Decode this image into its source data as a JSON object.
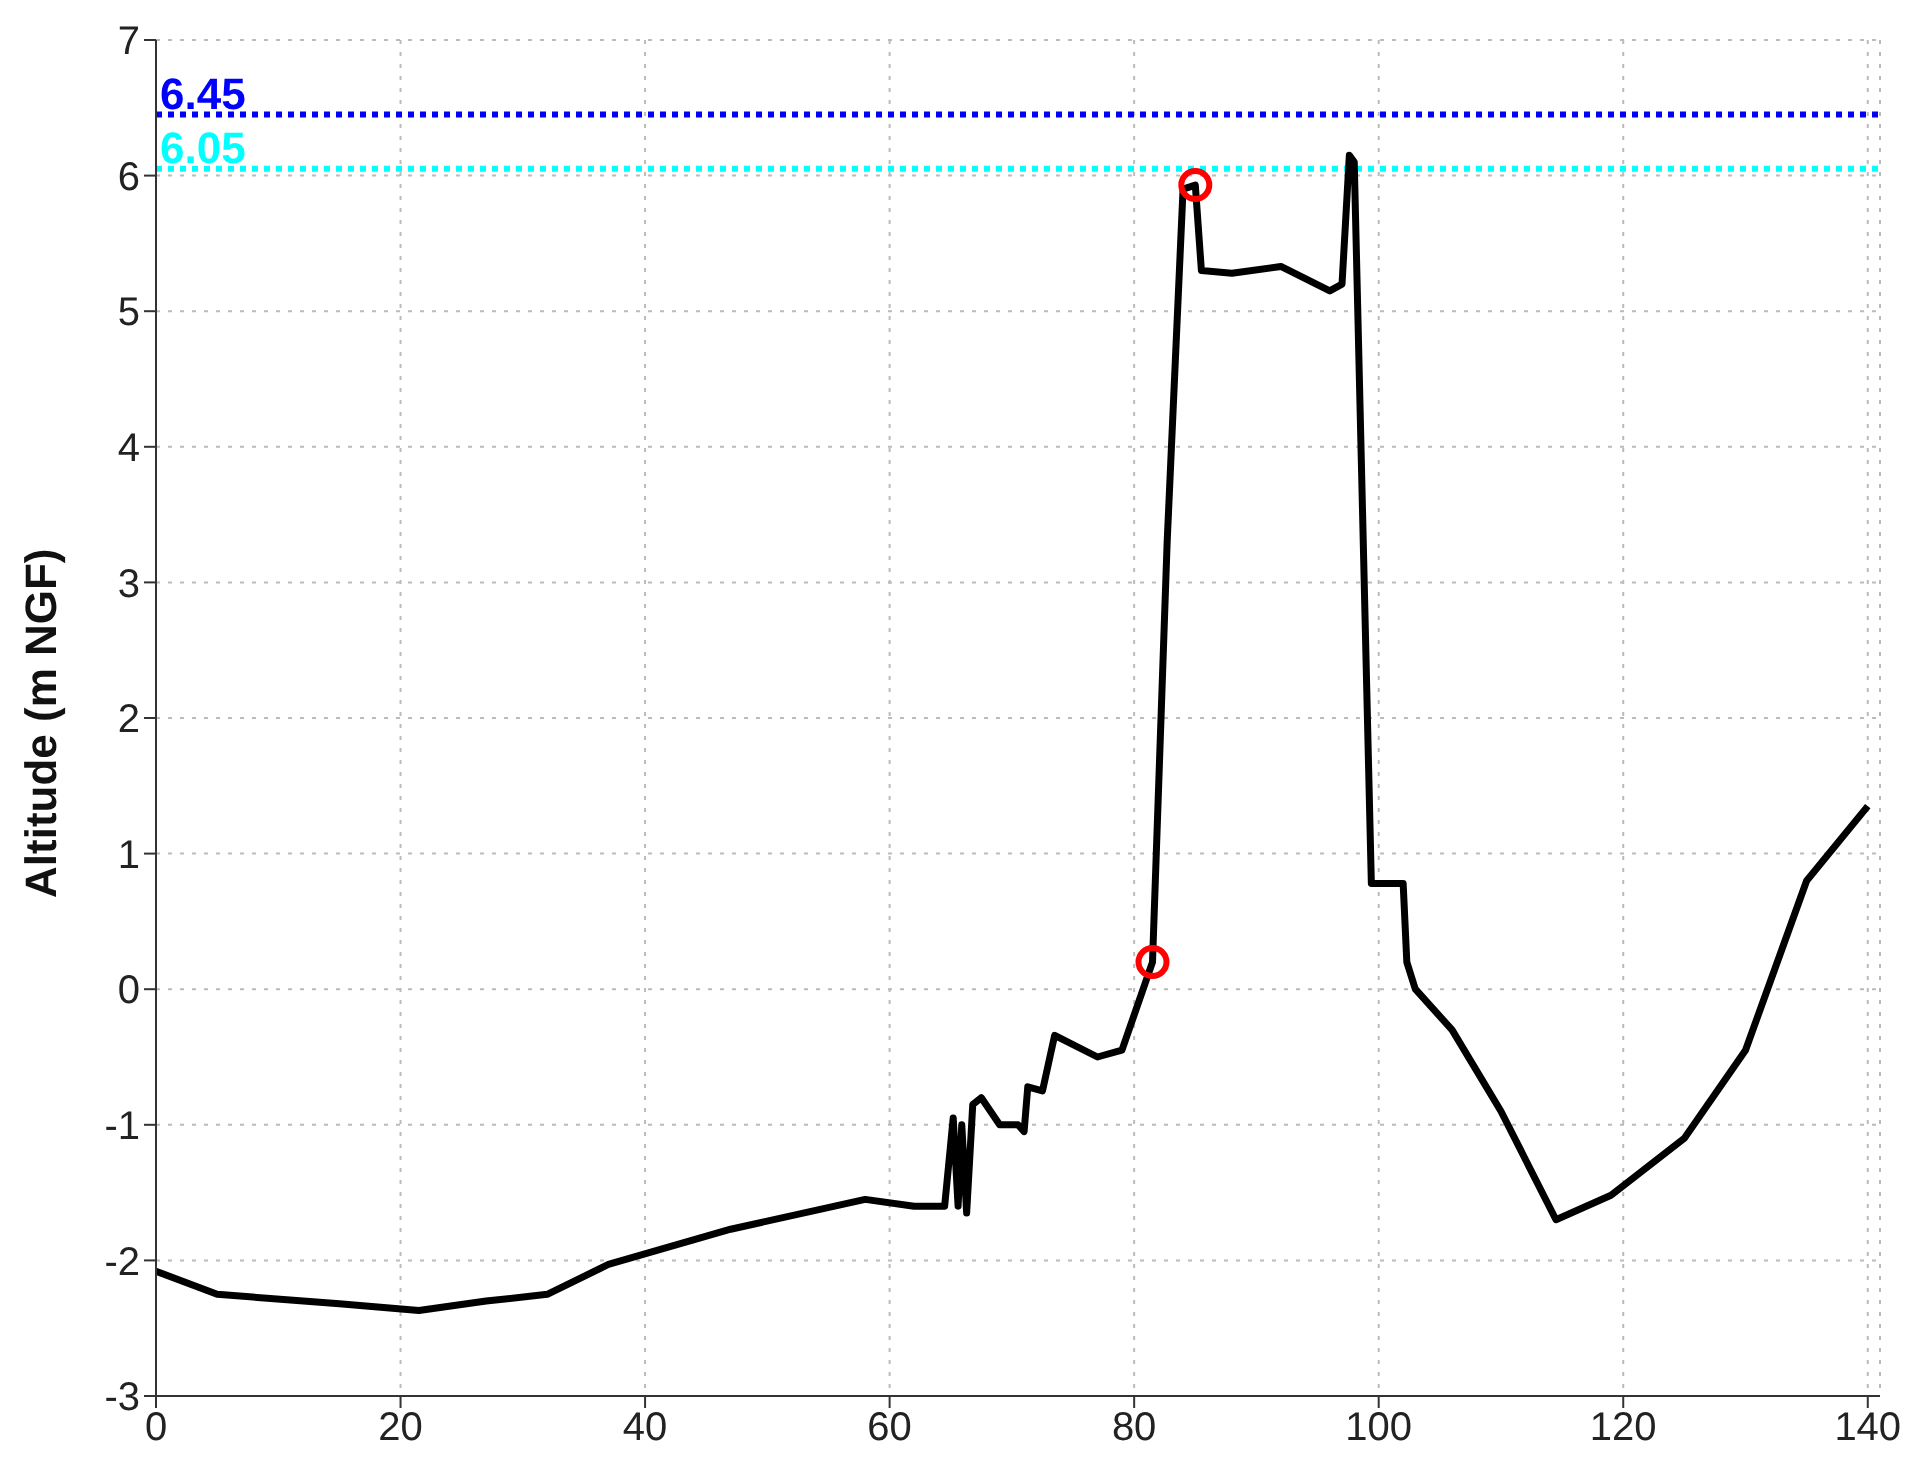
{
  "chart_data": {
    "type": "line",
    "ylabel": "Altitude (m NGF)",
    "xlim": [
      0,
      141
    ],
    "xticks": [
      0,
      20,
      40,
      60,
      80,
      100,
      120,
      140
    ],
    "ylim": [
      -3,
      7
    ],
    "yticks": [
      -3,
      -2,
      -1,
      0,
      1,
      2,
      3,
      4,
      5,
      6,
      7
    ],
    "grid": true,
    "legend": false,
    "line_style": "solid",
    "marker": "none",
    "series": [
      {
        "color": "#000000",
        "x": [
          0,
          5,
          15,
          21.5,
          27,
          32,
          37,
          47,
          58,
          62,
          64.5,
          65.2,
          65.6,
          65.9,
          66.3,
          66.8,
          67.5,
          69,
          70.5,
          71,
          71.3,
          72.5,
          73.5,
          77,
          79,
          81.5,
          82.7,
          84,
          85,
          85.5,
          88,
          92,
          96,
          97,
          97.6,
          98,
          99.4,
          102,
          102.3,
          103,
          106,
          110,
          114.5,
          119,
          125,
          130,
          135,
          140
        ],
        "values": [
          -2.08,
          -2.25,
          -2.32,
          -2.37,
          -2.3,
          -2.25,
          -2.03,
          -1.77,
          -1.55,
          -1.6,
          -1.6,
          -0.95,
          -1.6,
          -1.0,
          -1.65,
          -0.85,
          -0.8,
          -1.0,
          -1.0,
          -1.05,
          -0.72,
          -0.75,
          -0.34,
          -0.5,
          -0.45,
          0.2,
          3.3,
          5.9,
          5.93,
          5.3,
          5.28,
          5.33,
          5.15,
          5.2,
          6.15,
          6.1,
          0.78,
          0.78,
          0.2,
          0.0,
          -0.3,
          -0.9,
          -1.7,
          -1.52,
          -1.1,
          -0.45,
          0.8,
          1.35
        ]
      },
      {
        "type": "scatter",
        "color": "#ff0000",
        "marker": "circle",
        "x": [
          81.5,
          85
        ],
        "values": [
          0.2,
          5.93
        ]
      }
    ],
    "ref_lines": [
      {
        "axis": "y",
        "value": 6.45,
        "label": "6.45",
        "color": "#0000ff",
        "line_style": "dotted"
      },
      {
        "axis": "y",
        "value": 6.05,
        "label": "6.05",
        "color": "#00ffff",
        "line_style": "dotted"
      }
    ]
  }
}
